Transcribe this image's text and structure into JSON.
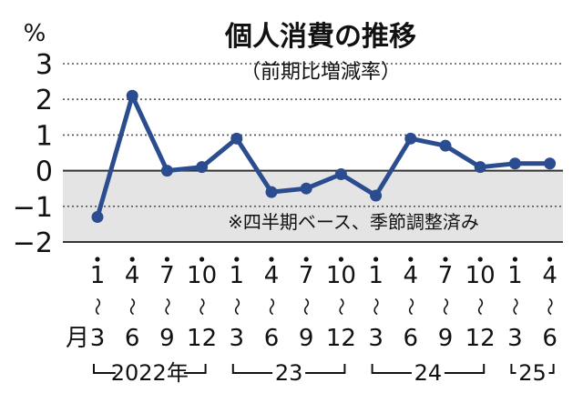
{
  "chart_data": {
    "type": "line",
    "title": "個人消費の推移",
    "subtitle": "（前期比増減率）",
    "ylabel": "%",
    "ylim": [
      -2,
      3
    ],
    "yticks": [
      "3",
      "2",
      "1",
      "0",
      "−1",
      "−2"
    ],
    "grid": true,
    "note": "※四半期ベース、季節調整済み",
    "categories": [
      {
        "start": "1",
        "end": "3"
      },
      {
        "start": "4",
        "end": "6"
      },
      {
        "start": "7",
        "end": "9"
      },
      {
        "start": "10",
        "end": "12"
      },
      {
        "start": "1",
        "end": "3"
      },
      {
        "start": "4",
        "end": "6"
      },
      {
        "start": "7",
        "end": "9"
      },
      {
        "start": "10",
        "end": "12"
      },
      {
        "start": "1",
        "end": "3"
      },
      {
        "start": "4",
        "end": "6"
      },
      {
        "start": "7",
        "end": "9"
      },
      {
        "start": "10",
        "end": "12"
      },
      {
        "start": "1",
        "end": "3"
      },
      {
        "start": "4",
        "end": "6"
      }
    ],
    "month_unit": "月",
    "range_mark": "〜",
    "year_groups": [
      {
        "label": "2022年",
        "first": 0,
        "last": 3
      },
      {
        "label": "23",
        "first": 4,
        "last": 7
      },
      {
        "label": "24",
        "first": 8,
        "last": 11
      },
      {
        "label": "25",
        "first": 12,
        "last": 13
      }
    ],
    "series": [
      {
        "values": [
          -1.3,
          2.1,
          0.0,
          0.1,
          0.9,
          -0.6,
          -0.5,
          -0.1,
          -0.7,
          0.9,
          0.7,
          0.1,
          0.2,
          0.2
        ]
      }
    ],
    "colors": {
      "line": "#2b4c8f",
      "negative_band": "#e4e4e4",
      "grid": "#555555"
    }
  }
}
